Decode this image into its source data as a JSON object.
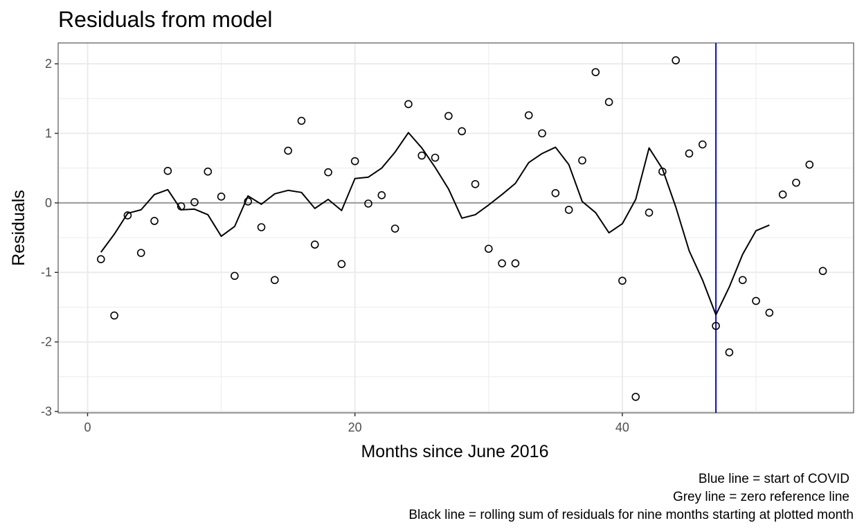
{
  "chart_data": {
    "type": "scatter",
    "title": "Residuals from model",
    "xlabel": "Months since June 2016",
    "ylabel": "Residuals",
    "xlim": [
      -2.2,
      57.3
    ],
    "ylim": [
      -3.02,
      2.3
    ],
    "x_ticks": [
      0,
      20,
      40
    ],
    "y_ticks": [
      -3,
      -2,
      -1,
      0,
      1,
      2
    ],
    "x_tick_labels": [
      "0",
      "20",
      "40"
    ],
    "y_tick_labels": [
      "-3",
      "-2",
      "-1",
      "0",
      "1",
      "2"
    ],
    "grid": true,
    "points": [
      [
        1,
        -0.81
      ],
      [
        2,
        -1.62
      ],
      [
        3,
        -0.18
      ],
      [
        4,
        -0.72
      ],
      [
        5,
        -0.26
      ],
      [
        6,
        0.46
      ],
      [
        7,
        -0.05
      ],
      [
        8,
        0.01
      ],
      [
        9,
        0.45
      ],
      [
        10,
        0.09
      ],
      [
        11,
        -1.05
      ],
      [
        12,
        0.02
      ],
      [
        13,
        -0.35
      ],
      [
        14,
        -1.11
      ],
      [
        15,
        0.75
      ],
      [
        16,
        1.18
      ],
      [
        17,
        -0.6
      ],
      [
        18,
        0.44
      ],
      [
        19,
        -0.88
      ],
      [
        20,
        0.6
      ],
      [
        21,
        -0.01
      ],
      [
        22,
        0.11
      ],
      [
        23,
        -0.37
      ],
      [
        24,
        1.42
      ],
      [
        25,
        0.68
      ],
      [
        26,
        0.65
      ],
      [
        27,
        1.25
      ],
      [
        28,
        1.03
      ],
      [
        29,
        0.27
      ],
      [
        30,
        -0.66
      ],
      [
        31,
        -0.87
      ],
      [
        32,
        -0.87
      ],
      [
        33,
        1.26
      ],
      [
        34,
        1.0
      ],
      [
        35,
        0.14
      ],
      [
        36,
        -0.1
      ],
      [
        37,
        0.61
      ],
      [
        38,
        1.88
      ],
      [
        39,
        1.45
      ],
      [
        40,
        -1.12
      ],
      [
        41,
        -2.79
      ],
      [
        42,
        -0.14
      ],
      [
        43,
        0.45
      ],
      [
        44,
        2.05
      ],
      [
        45,
        0.71
      ],
      [
        46,
        0.84
      ],
      [
        47,
        -1.77
      ],
      [
        48,
        -2.15
      ],
      [
        49,
        -1.11
      ],
      [
        50,
        -1.41
      ],
      [
        51,
        -1.58
      ],
      [
        52,
        0.12
      ],
      [
        53,
        0.29
      ],
      [
        54,
        0.55
      ],
      [
        55,
        -0.98
      ]
    ],
    "rolling_sum": [
      [
        1,
        -0.71
      ],
      [
        2,
        -0.45
      ],
      [
        3,
        -0.15
      ],
      [
        4,
        -0.1
      ],
      [
        5,
        0.12
      ],
      [
        6,
        0.19
      ],
      [
        7,
        -0.1
      ],
      [
        8,
        -0.09
      ],
      [
        9,
        -0.17
      ],
      [
        10,
        -0.48
      ],
      [
        11,
        -0.34
      ],
      [
        12,
        0.1
      ],
      [
        13,
        -0.02
      ],
      [
        14,
        0.13
      ],
      [
        15,
        0.18
      ],
      [
        16,
        0.15
      ],
      [
        17,
        -0.08
      ],
      [
        18,
        0.05
      ],
      [
        19,
        -0.11
      ],
      [
        20,
        0.35
      ],
      [
        21,
        0.37
      ],
      [
        22,
        0.5
      ],
      [
        23,
        0.73
      ],
      [
        24,
        1.01
      ],
      [
        25,
        0.79
      ],
      [
        26,
        0.51
      ],
      [
        27,
        0.2
      ],
      [
        28,
        -0.22
      ],
      [
        29,
        -0.17
      ],
      [
        30,
        -0.03
      ],
      [
        31,
        0.12
      ],
      [
        32,
        0.28
      ],
      [
        33,
        0.58
      ],
      [
        34,
        0.71
      ],
      [
        35,
        0.8
      ],
      [
        36,
        0.55
      ],
      [
        37,
        0.02
      ],
      [
        38,
        -0.14
      ],
      [
        39,
        -0.43
      ],
      [
        40,
        -0.3
      ],
      [
        41,
        0.05
      ],
      [
        42,
        0.79
      ],
      [
        43,
        0.49
      ],
      [
        44,
        -0.06
      ],
      [
        45,
        -0.69
      ],
      [
        46,
        -1.11
      ],
      [
        47,
        -1.61
      ],
      [
        48,
        -1.21
      ],
      [
        49,
        -0.74
      ],
      [
        50,
        -0.4
      ],
      [
        51,
        -0.32
      ]
    ],
    "covid_line_x": 47,
    "zero_line_y": 0,
    "colors": {
      "covid_line": "#0000ff",
      "zero_line": "#999999",
      "rolling_line": "#000000",
      "points": "#000000",
      "grid": "#ebebeb"
    },
    "caption": [
      "Blue line = start of COVID",
      "Grey line = zero reference line",
      "Black line = rolling sum of residuals for nine months starting at plotted month"
    ]
  }
}
